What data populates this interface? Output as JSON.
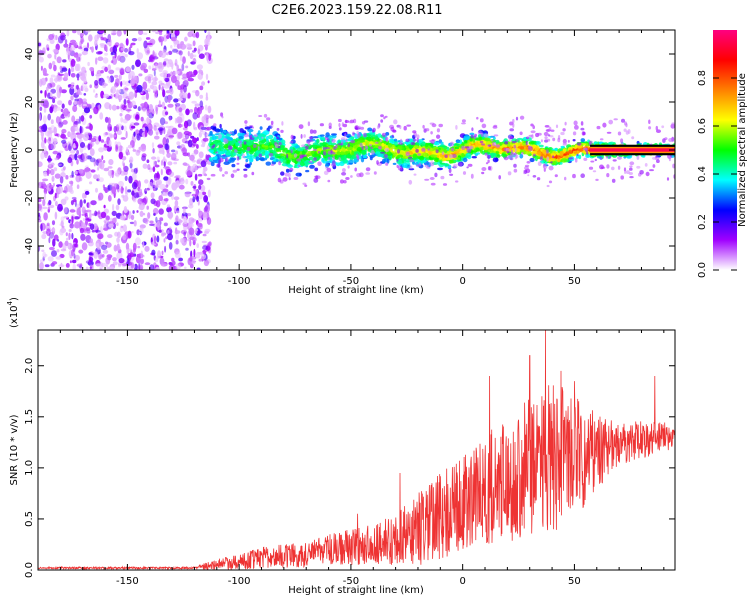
{
  "title": "C2E6.2023.159.22.08.R11",
  "chart_data": [
    {
      "type": "heatmap",
      "name": "spectrogram",
      "xlabel": "Height of straight line (km)",
      "ylabel": "Frequency (Hz)",
      "xlim": [
        -190,
        95
      ],
      "ylim": [
        -50,
        50
      ],
      "xticks": [
        -150,
        -100,
        -50,
        0,
        50
      ],
      "xtick_labels": [
        "-150",
        "-100",
        "-50",
        "0",
        "50"
      ],
      "yticks": [
        -40,
        -20,
        0,
        20,
        40
      ],
      "ytick_labels": [
        "-40",
        "-20",
        "0",
        "20",
        "40"
      ],
      "noise_region_x": [
        -190,
        -113
      ],
      "signal_band_x": [
        -113,
        95
      ],
      "signal_band_center_hz": 0,
      "signal_band_halfwidth_hz": [
        8,
        2
      ],
      "tone_band_x": [
        57,
        95
      ],
      "tone_band_hz": 0,
      "colorbar": {
        "label": "Normalized spectral amplitude",
        "range": [
          0.0,
          1.0
        ],
        "ticks": [
          0.0,
          0.2,
          0.4,
          0.6,
          0.8
        ],
        "tick_labels": [
          "0.0",
          "0.2",
          "0.4",
          "0.6",
          "0.8"
        ],
        "stops": [
          "#ffffff",
          "#a000ff",
          "#0000ff",
          "#00ffff",
          "#00ff00",
          "#ffff00",
          "#ff8000",
          "#ff0000",
          "#ff0080"
        ]
      }
    },
    {
      "type": "line",
      "name": "snr",
      "xlabel": "Height of straight line (km)",
      "ylabel": "SNR (10 * v/v)",
      "y_scale_label": "(x10",
      "y_scale_exp": "4",
      "y_scale_close": ")",
      "xlim": [
        -190,
        95
      ],
      "ylim": [
        0.0,
        2.35
      ],
      "xticks": [
        -150,
        -100,
        -50,
        0,
        50
      ],
      "xtick_labels": [
        "-150",
        "-100",
        "-50",
        "0",
        "50"
      ],
      "yticks": [
        0.0,
        0.5,
        1.0,
        1.5,
        2.0
      ],
      "ytick_labels": [
        "0.0",
        "0.5",
        "1.0",
        "1.5",
        "2.0"
      ],
      "color": "#ee3333",
      "envelope": {
        "x": [
          -190,
          -120,
          -112,
          -100,
          -90,
          -80,
          -70,
          -60,
          -50,
          -40,
          -30,
          -22,
          -15,
          -10,
          -5,
          0,
          5,
          10,
          20,
          30,
          40,
          50,
          60,
          70,
          80,
          90,
          95
        ],
        "mean": [
          0.02,
          0.02,
          0.05,
          0.08,
          0.12,
          0.14,
          0.15,
          0.2,
          0.22,
          0.25,
          0.3,
          0.4,
          0.45,
          0.5,
          0.6,
          0.65,
          0.72,
          0.8,
          0.85,
          1.0,
          1.1,
          1.12,
          1.15,
          1.22,
          1.28,
          1.3,
          1.3
        ],
        "amp": [
          0.01,
          0.01,
          0.05,
          0.08,
          0.1,
          0.12,
          0.12,
          0.15,
          0.18,
          0.2,
          0.25,
          0.35,
          0.4,
          0.45,
          0.45,
          0.45,
          0.5,
          0.55,
          0.6,
          0.7,
          0.75,
          0.6,
          0.4,
          0.2,
          0.2,
          0.15,
          0.1
        ]
      },
      "peaks": [
        [
          37,
          2.35
        ],
        [
          30,
          2.1
        ],
        [
          44,
          1.95
        ],
        [
          86,
          1.9
        ],
        [
          50,
          1.85
        ],
        [
          12,
          1.9
        ],
        [
          -28,
          0.95
        ],
        [
          -47,
          0.55
        ]
      ]
    }
  ]
}
